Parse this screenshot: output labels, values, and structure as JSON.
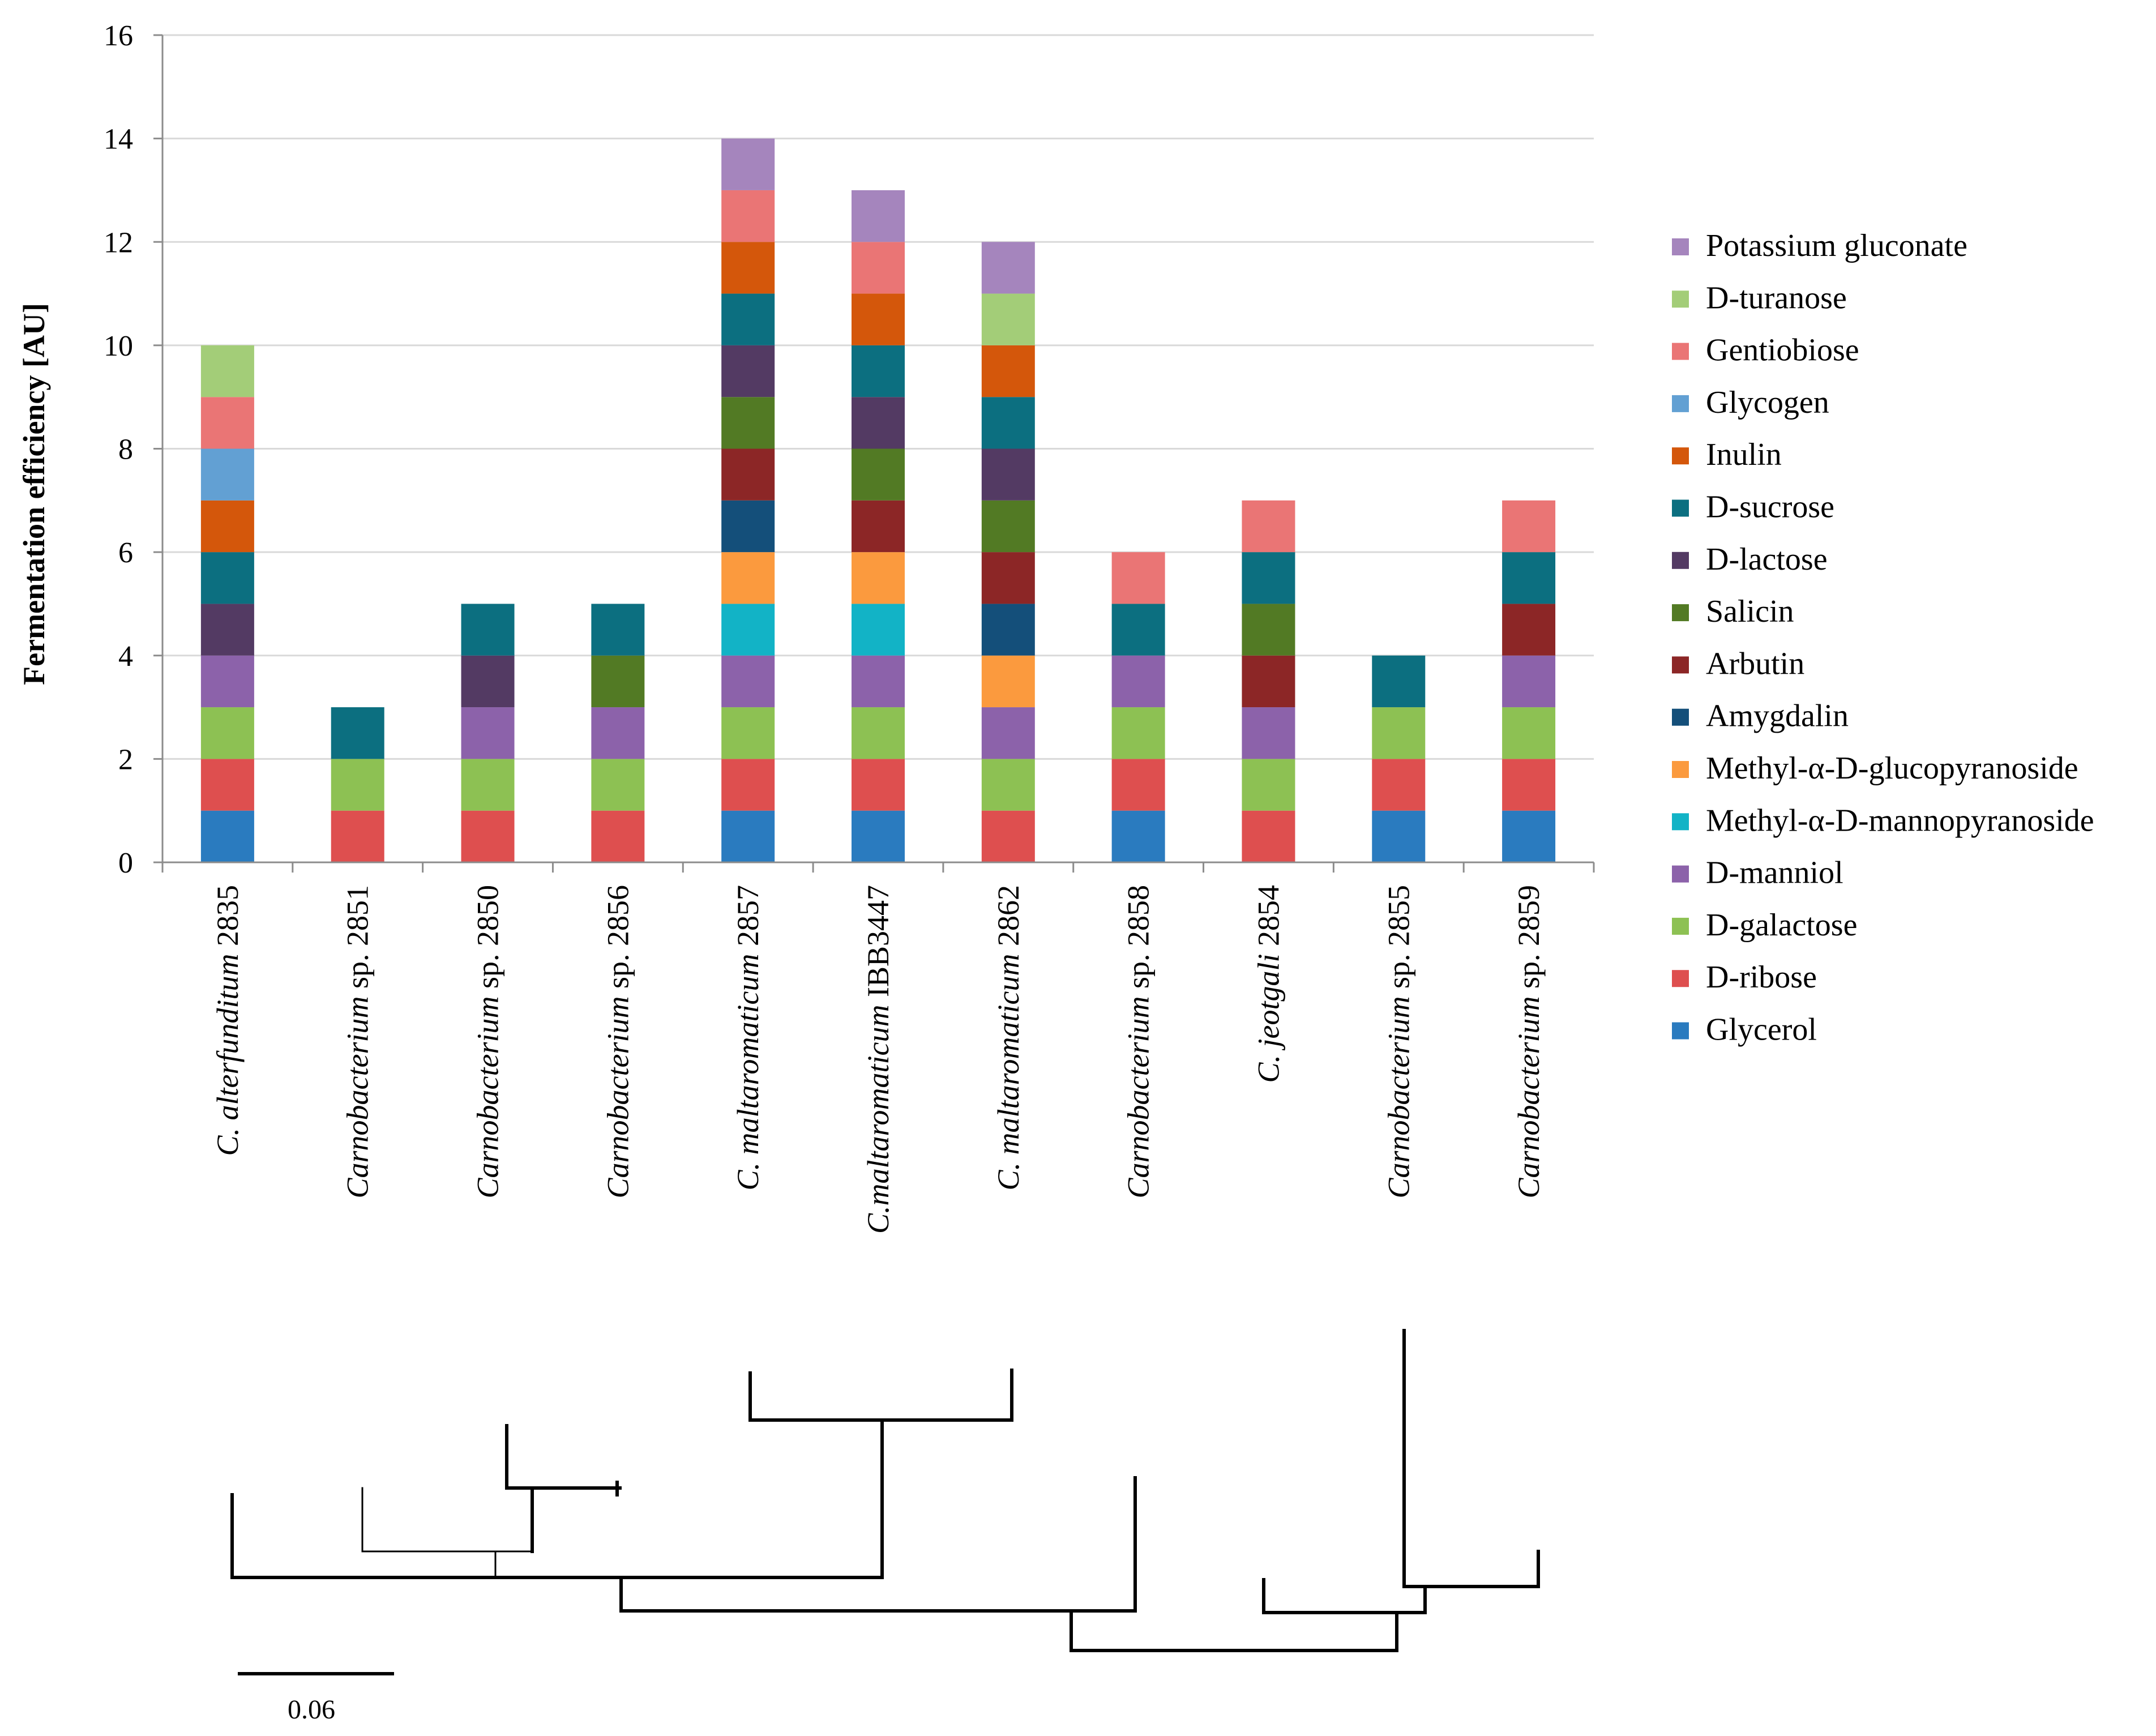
{
  "chart_data": {
    "type": "bar",
    "stacked": true,
    "title": "",
    "xlabel": "",
    "ylabel": "Fermentation efficiency [AU]",
    "ylim": [
      0,
      16
    ],
    "yticks": [
      0,
      2,
      4,
      6,
      8,
      10,
      12,
      14,
      16
    ],
    "grid": true,
    "legend_position": "right",
    "categories": [
      {
        "italic": "C. alterfunditum",
        "plain": " 2835"
      },
      {
        "italic": "Carnobacterium",
        "plain": " sp. 2851"
      },
      {
        "italic": "Carnobacterium",
        "plain": " sp. 2850"
      },
      {
        "italic": "Carnobacterium",
        "plain": " sp. 2856"
      },
      {
        "italic": "C. maltaromaticum",
        "plain": " 2857"
      },
      {
        "italic": "C.maltaromaticum",
        "plain": " IBB3447"
      },
      {
        "italic": "C. maltaromaticum",
        "plain": " 2862"
      },
      {
        "italic": "Carnobacterium",
        "plain": " sp. 2858"
      },
      {
        "italic": "C. jeotgali",
        "plain": " 2854"
      },
      {
        "italic": "Carnobacterium",
        "plain": " sp. 2855"
      },
      {
        "italic": "Carnobacterium",
        "plain": " sp. 2859"
      }
    ],
    "series": [
      {
        "name": "Glycerol",
        "color": "#2a7bbf",
        "values": [
          1,
          0,
          0,
          0,
          1,
          1,
          0,
          1,
          0,
          1,
          1
        ]
      },
      {
        "name": "D-ribose",
        "color": "#de4f4f",
        "values": [
          1,
          1,
          1,
          1,
          1,
          1,
          1,
          1,
          1,
          1,
          1
        ]
      },
      {
        "name": "D-galactose",
        "color": "#8dc153",
        "values": [
          1,
          1,
          1,
          1,
          1,
          1,
          1,
          1,
          1,
          1,
          1
        ]
      },
      {
        "name": "D-manniol",
        "color": "#8c62aa",
        "values": [
          1,
          0,
          1,
          1,
          1,
          1,
          1,
          1,
          1,
          0,
          1
        ]
      },
      {
        "name": "Methyl-α-D-mannopyranoside",
        "color": "#12b3c6",
        "values": [
          0,
          0,
          0,
          0,
          1,
          1,
          0,
          0,
          0,
          0,
          0
        ]
      },
      {
        "name": "Methyl-α-D-glucopyranoside",
        "color": "#fb9a3e",
        "values": [
          0,
          0,
          0,
          0,
          1,
          1,
          1,
          0,
          0,
          0,
          0
        ]
      },
      {
        "name": "Amygdalin",
        "color": "#144f7a",
        "values": [
          0,
          0,
          0,
          0,
          1,
          0,
          1,
          0,
          0,
          0,
          0
        ]
      },
      {
        "name": "Arbutin",
        "color": "#8c2626",
        "values": [
          0,
          0,
          0,
          0,
          1,
          1,
          1,
          0,
          1,
          0,
          1
        ]
      },
      {
        "name": "Salicin",
        "color": "#527a24",
        "values": [
          0,
          0,
          0,
          1,
          1,
          1,
          1,
          0,
          1,
          0,
          0
        ]
      },
      {
        "name": "D-lactose",
        "color": "#533a63",
        "values": [
          1,
          0,
          1,
          0,
          1,
          1,
          1,
          0,
          0,
          0,
          0
        ]
      },
      {
        "name": "D-sucrose",
        "color": "#0c6f80",
        "values": [
          1,
          1,
          1,
          1,
          1,
          1,
          1,
          1,
          1,
          1,
          1
        ]
      },
      {
        "name": "Inulin",
        "color": "#d4570b",
        "values": [
          1,
          0,
          0,
          0,
          1,
          1,
          1,
          0,
          0,
          0,
          0
        ]
      },
      {
        "name": "Glycogen",
        "color": "#62a0d3",
        "values": [
          1,
          0,
          0,
          0,
          0,
          0,
          0,
          0,
          0,
          0,
          0
        ]
      },
      {
        "name": "Gentiobiose",
        "color": "#ea7575",
        "values": [
          1,
          0,
          0,
          0,
          1,
          1,
          0,
          1,
          1,
          0,
          1
        ]
      },
      {
        "name": "D-turanose",
        "color": "#a3cd78",
        "values": [
          1,
          0,
          0,
          0,
          0,
          0,
          1,
          0,
          0,
          0,
          0
        ]
      },
      {
        "name": "Potassium gluconate",
        "color": "#a585bd",
        "values": [
          0,
          0,
          0,
          0,
          1,
          1,
          1,
          0,
          0,
          0,
          0
        ]
      }
    ],
    "dendrogram": {
      "scale_bar_label": "0.06"
    }
  }
}
